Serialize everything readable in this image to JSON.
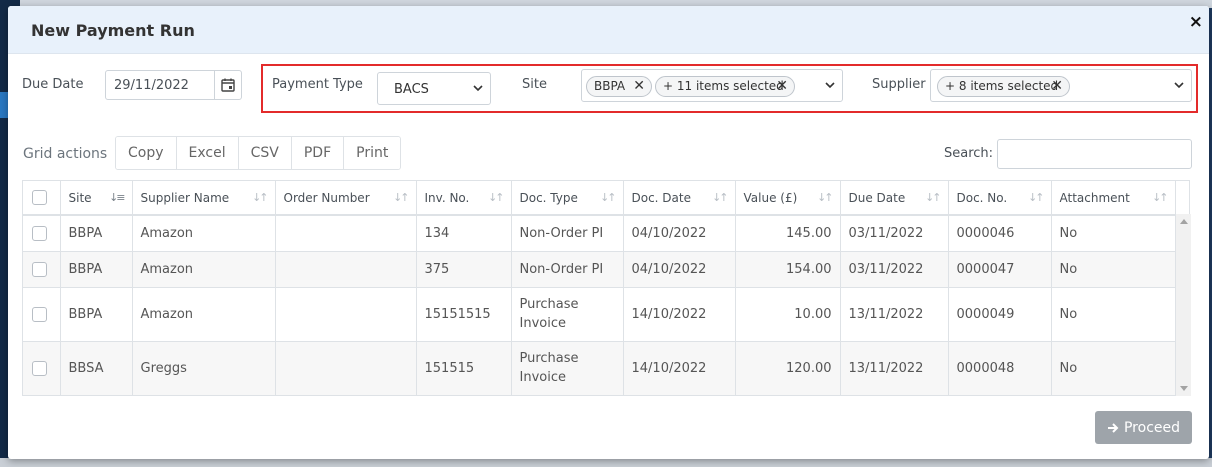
{
  "modal": {
    "title": "New Payment Run",
    "close_glyph": "×"
  },
  "filters": {
    "due_date_label": "Due Date",
    "due_date_value": "29/11/2022",
    "payment_type_label": "Payment Type",
    "payment_type_value": "BACS",
    "site_label": "Site",
    "site_tags": [
      "BBPA",
      "+ 11 items selected"
    ],
    "supplier_label": "Supplier",
    "supplier_tags": [
      "+ 8 items selected"
    ]
  },
  "toolbar": {
    "grid_actions_label": "Grid actions",
    "buttons": [
      "Copy",
      "Excel",
      "CSV",
      "PDF",
      "Print"
    ],
    "search_label": "Search:",
    "search_value": ""
  },
  "table": {
    "columns": [
      "Site",
      "Supplier Name",
      "Order Number",
      "Inv. No.",
      "Doc. Type",
      "Doc. Date",
      "Value (£)",
      "Due Date",
      "Doc. No.",
      "Attachment"
    ],
    "rows": [
      {
        "site": "BBPA",
        "supplier": "Amazon",
        "order": "",
        "inv": "134",
        "doctype": "Non-Order PI",
        "docdate": "04/10/2022",
        "value": "145.00",
        "duedate": "03/11/2022",
        "docno": "0000046",
        "attachment": "No"
      },
      {
        "site": "BBPA",
        "supplier": "Amazon",
        "order": "",
        "inv": "375",
        "doctype": "Non-Order PI",
        "docdate": "04/10/2022",
        "value": "154.00",
        "duedate": "03/11/2022",
        "docno": "0000047",
        "attachment": "No"
      },
      {
        "site": "BBPA",
        "supplier": "Amazon",
        "order": "",
        "inv": "15151515",
        "doctype": "Purchase Invoice",
        "docdate": "14/10/2022",
        "value": "10.00",
        "duedate": "13/11/2022",
        "docno": "0000049",
        "attachment": "No"
      },
      {
        "site": "BBSA",
        "supplier": "Greggs",
        "order": "",
        "inv": "151515",
        "doctype": "Purchase Invoice",
        "docdate": "14/10/2022",
        "value": "120.00",
        "duedate": "13/11/2022",
        "docno": "0000048",
        "attachment": "No"
      }
    ]
  },
  "footer": {
    "proceed_label": "Proceed"
  },
  "colors": {
    "highlight_border": "#e32b2b",
    "header_bg": "#e8f1fb",
    "proceed_bg": "#9ea4aa"
  }
}
